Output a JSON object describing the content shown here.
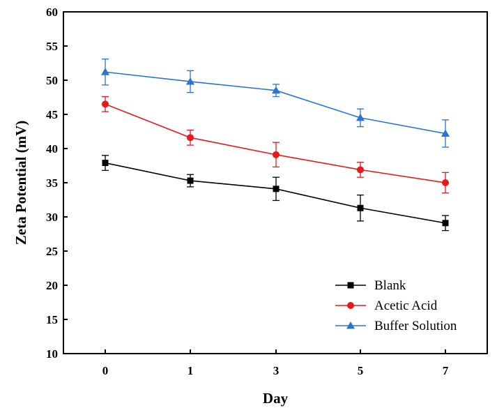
{
  "chart_data": {
    "type": "line",
    "title": "",
    "xlabel": "Day",
    "ylabel": "Zeta Potential (mV)",
    "categories": [
      "0",
      "1",
      "3",
      "5",
      "7"
    ],
    "ylim": [
      10,
      60
    ],
    "yticks": [
      10,
      15,
      20,
      25,
      30,
      35,
      40,
      45,
      50,
      55,
      60
    ],
    "grid": false,
    "legend_position": "bottom-right",
    "series": [
      {
        "name": "Blank",
        "color": "#000000",
        "marker": "square",
        "values": [
          37.9,
          35.3,
          34.1,
          31.3,
          29.1
        ],
        "errors": [
          1.1,
          0.9,
          1.7,
          1.9,
          1.1
        ]
      },
      {
        "name": "Acetic Acid",
        "color": "#e8191c",
        "marker": "circle",
        "values": [
          46.5,
          41.6,
          39.1,
          36.9,
          35.0
        ],
        "errors": [
          1.1,
          1.1,
          1.8,
          1.1,
          1.5
        ]
      },
      {
        "name": "Buffer Solution",
        "color": "#2a73d0",
        "marker": "triangle",
        "values": [
          51.2,
          49.8,
          48.5,
          44.5,
          42.2
        ],
        "errors": [
          1.9,
          1.6,
          0.9,
          1.3,
          2.0
        ]
      }
    ]
  }
}
